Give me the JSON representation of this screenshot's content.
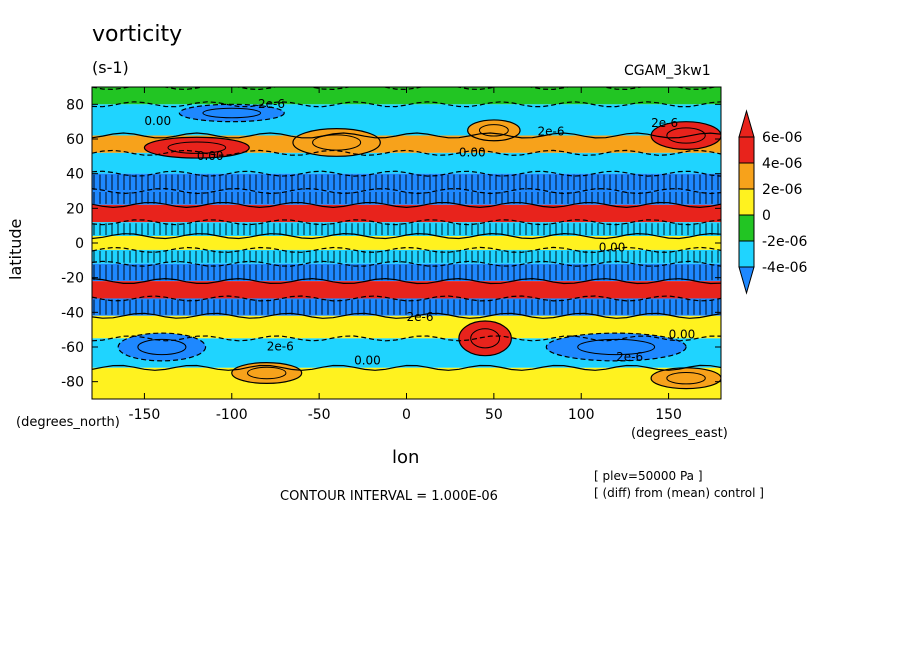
{
  "title": "vorticity",
  "units": "(s-1)",
  "dataset": "CGAM_3kw1",
  "contour_interval_label": "CONTOUR INTERVAL = 1.000E-06",
  "annotations": [
    "[ plev=50000 Pa ]",
    "[ (diff) from (mean) control ]"
  ],
  "colorbar": {
    "labels": [
      "6e-06",
      "4e-06",
      "2e-06",
      "0",
      "-2e-06",
      "-4e-06"
    ],
    "colors": [
      "#e8231c",
      "#f7a21b",
      "#fff21f",
      "#22c523",
      "#1fd4ff",
      "#1e88ff"
    ]
  },
  "contour_labels": [
    "0.00",
    "2e-6"
  ],
  "chart_data": {
    "type": "heatmap",
    "title": "vorticity",
    "units": "(s-1)",
    "xlabel": "lon",
    "ylabel": "latitude",
    "xunit": "(degrees_east)",
    "yunit": "(degrees_north)",
    "xlim": [
      -180,
      180
    ],
    "ylim": [
      -90,
      90
    ],
    "xticks": [
      -150,
      -100,
      -50,
      0,
      50,
      100,
      150
    ],
    "yticks": [
      -80,
      -60,
      -40,
      -20,
      0,
      20,
      40,
      60,
      80
    ],
    "levels": [
      -4e-06,
      -2e-06,
      0,
      2e-06,
      4e-06,
      6e-06
    ],
    "contour_interval": 1e-06,
    "plev": "50000 Pa",
    "bands": [
      {
        "lat_min": 80,
        "lat_max": 90,
        "value": -1e-06
      },
      {
        "lat_min": 62,
        "lat_max": 80,
        "value": -2e-06
      },
      {
        "lat_min": 52,
        "lat_max": 62,
        "value": 4e-06
      },
      {
        "lat_min": 40,
        "lat_max": 52,
        "value": -2e-06
      },
      {
        "lat_min": 30,
        "lat_max": 40,
        "value": -4e-06
      },
      {
        "lat_min": 22,
        "lat_max": 30,
        "value": -5e-06
      },
      {
        "lat_min": 12,
        "lat_max": 22,
        "value": 6e-06
      },
      {
        "lat_min": 4,
        "lat_max": 12,
        "value": -3e-06
      },
      {
        "lat_min": -4,
        "lat_max": 4,
        "value": 1e-06
      },
      {
        "lat_min": -12,
        "lat_max": -4,
        "value": -3e-06
      },
      {
        "lat_min": -22,
        "lat_max": -12,
        "value": -4e-06
      },
      {
        "lat_min": -32,
        "lat_max": -22,
        "value": 6e-06
      },
      {
        "lat_min": -42,
        "lat_max": -32,
        "value": -5e-06
      },
      {
        "lat_min": -55,
        "lat_max": -42,
        "value": 1e-06
      },
      {
        "lat_min": -72,
        "lat_max": -55,
        "value": -2e-06
      },
      {
        "lat_min": -90,
        "lat_max": -72,
        "value": 1e-06
      }
    ],
    "blobs": [
      {
        "lon": -120,
        "lat": 55,
        "rlon": 30,
        "rlat": 6,
        "value": 6e-06
      },
      {
        "lon": -40,
        "lat": 58,
        "rlon": 25,
        "rlat": 8,
        "value": 4e-06
      },
      {
        "lon": 50,
        "lat": 65,
        "rlon": 15,
        "rlat": 6,
        "value": 3e-06
      },
      {
        "lon": 160,
        "lat": 62,
        "rlon": 20,
        "rlat": 8,
        "value": 5e-06
      },
      {
        "lon": 45,
        "lat": -55,
        "rlon": 15,
        "rlat": 10,
        "value": 5e-06
      },
      {
        "lon": -80,
        "lat": -75,
        "rlon": 20,
        "rlat": 6,
        "value": 4e-06
      },
      {
        "lon": 160,
        "lat": -78,
        "rlon": 20,
        "rlat": 6,
        "value": 4e-06
      },
      {
        "lon": -100,
        "lat": 75,
        "rlon": 30,
        "rlat": 5,
        "value": -4e-06
      },
      {
        "lon": 120,
        "lat": -60,
        "rlon": 40,
        "rlat": 8,
        "value": -4e-06
      },
      {
        "lon": -140,
        "lat": -60,
        "rlon": 25,
        "rlat": 8,
        "value": -4e-06
      }
    ]
  }
}
